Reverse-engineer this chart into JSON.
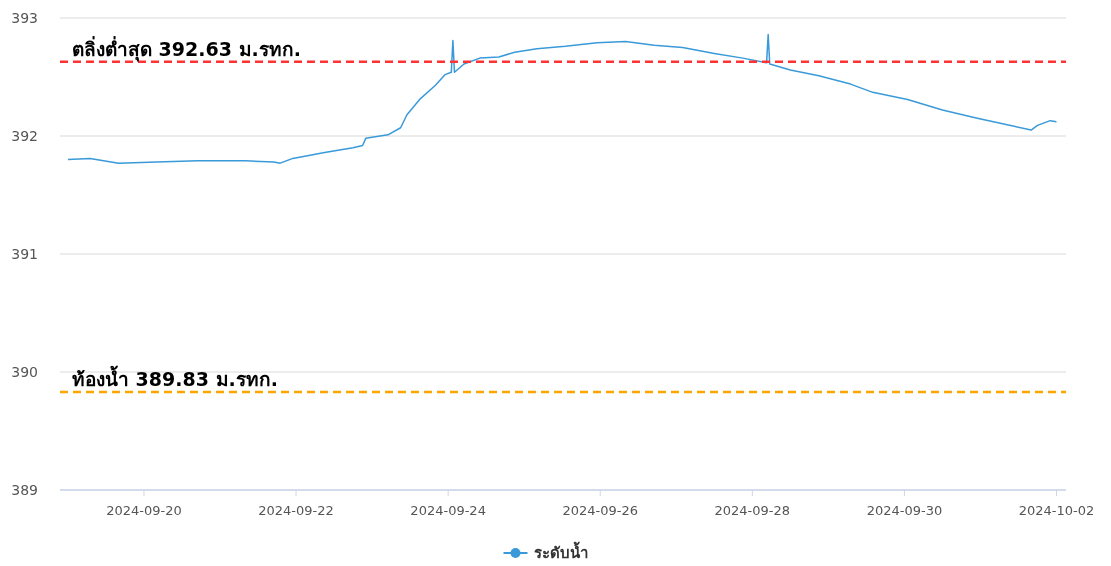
{
  "chart_data": {
    "type": "line",
    "xlim": [
      "2024-09-18T21:30",
      "2024-10-02T03:00"
    ],
    "ylim": [
      389,
      393
    ],
    "xticks": [
      "2024-09-20",
      "2024-09-22",
      "2024-09-24",
      "2024-09-26",
      "2024-09-28",
      "2024-09-30",
      "2024-10-02"
    ],
    "yticks": [
      389,
      390,
      391,
      392,
      393
    ],
    "grid": "y",
    "legend": "bottom",
    "line_style": "solid",
    "ref_lines": [
      {
        "axis": "y",
        "value": 392.63,
        "label": "ตลิ่งต่ำสุด 392.63 ม.รทก.",
        "color": "#ff3333",
        "line_style": "dashed"
      },
      {
        "axis": "y",
        "value": 389.83,
        "label": "ท้องน้ำ 389.83 ม.รทก.",
        "color": "#ffa500",
        "line_style": "dashed"
      }
    ],
    "series": [
      {
        "name": "ระดับน้ำ",
        "color": "#3a9ad9",
        "x": [
          "2024-09-19T00:00",
          "2024-09-19T07:00",
          "2024-09-19T16:00",
          "2024-09-20T04:00",
          "2024-09-20T17:00",
          "2024-09-21T08:00",
          "2024-09-21T17:00",
          "2024-09-21T19:00",
          "2024-09-21T23:00",
          "2024-09-22T09:00",
          "2024-09-22T18:00",
          "2024-09-22T21:00",
          "2024-09-22T22:00",
          "2024-09-23T05:00",
          "2024-09-23T09:00",
          "2024-09-23T11:00",
          "2024-09-23T15:00",
          "2024-09-23T20:00",
          "2024-09-23T23:00",
          "2024-09-24T01:00",
          "2024-09-24T01:30",
          "2024-09-24T02:00",
          "2024-09-24T05:00",
          "2024-09-24T10:00",
          "2024-09-24T16:00",
          "2024-09-24T21:00",
          "2024-09-25T04:00",
          "2024-09-25T13:00",
          "2024-09-25T23:00",
          "2024-09-26T08:00",
          "2024-09-26T17:00",
          "2024-09-27T02:00",
          "2024-09-27T12:00",
          "2024-09-27T21:00",
          "2024-09-28T04:30",
          "2024-09-28T05:00",
          "2024-09-28T05:30",
          "2024-09-28T12:00",
          "2024-09-28T21:00",
          "2024-09-29T07:00",
          "2024-09-29T14:00",
          "2024-09-30T01:00",
          "2024-09-30T12:00",
          "2024-09-30T23:00",
          "2024-10-01T11:00",
          "2024-10-01T16:00",
          "2024-10-01T18:00",
          "2024-10-01T22:00",
          "2024-10-02T00:00"
        ],
        "values": [
          391.8,
          391.81,
          391.77,
          391.78,
          391.79,
          391.79,
          391.78,
          391.77,
          391.81,
          391.86,
          391.9,
          391.92,
          391.98,
          392.01,
          392.07,
          392.18,
          392.31,
          392.43,
          392.52,
          392.54,
          392.81,
          392.54,
          392.61,
          392.66,
          392.67,
          392.71,
          392.74,
          392.76,
          392.79,
          392.8,
          392.77,
          392.75,
          392.7,
          392.66,
          392.62,
          392.86,
          392.61,
          392.56,
          392.51,
          392.44,
          392.37,
          392.31,
          392.22,
          392.15,
          392.08,
          392.05,
          392.09,
          392.13,
          392.12
        ]
      }
    ]
  }
}
